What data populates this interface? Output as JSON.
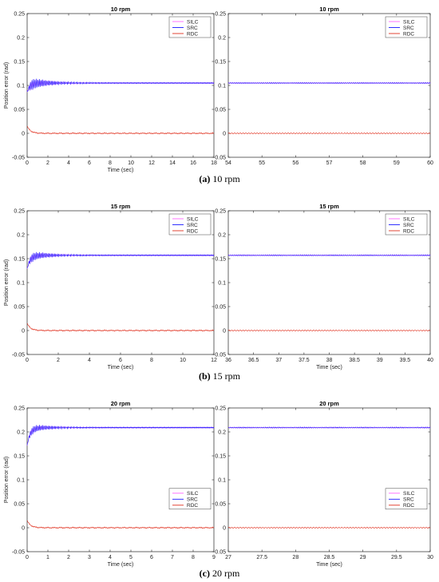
{
  "captions": [
    {
      "letter": "(a)",
      "text": "10 rpm"
    },
    {
      "letter": "(b)",
      "text": "15 rpm"
    },
    {
      "letter": "(c)",
      "text": "20 rpm"
    }
  ],
  "series_style": [
    {
      "name": "SILC",
      "color": "#ff66ff"
    },
    {
      "name": "SRC",
      "color": "#1a1aff"
    },
    {
      "name": "RDC",
      "color": "#e0301e"
    }
  ],
  "chart_data": [
    {
      "type": "line",
      "title": "10 rpm",
      "xlabel": "Time (sec)",
      "ylabel": "Position error (rad)",
      "xlim": [
        0,
        18
      ],
      "ylim": [
        -0.05,
        0.25
      ],
      "xticks": [
        "0",
        "2",
        "4",
        "6",
        "8",
        "10",
        "12",
        "14",
        "16",
        "18"
      ],
      "yticks": [
        "-0.05",
        "0",
        "0.05",
        "0.1",
        "0.15",
        "0.2",
        "0.25"
      ],
      "legend": [
        "SILC",
        "SRC",
        "RDC"
      ],
      "legend_position": "top-right",
      "steady_state": {
        "SILC": 0.105,
        "SRC": 0.105,
        "RDC": 0.0
      },
      "transient_peak": 0.115
    },
    {
      "type": "line",
      "title": "10 rpm",
      "xlabel": "",
      "ylabel": "",
      "xlim": [
        54,
        60
      ],
      "ylim": [
        -0.05,
        0.25
      ],
      "xticks": [
        "54",
        "55",
        "56",
        "57",
        "58",
        "59",
        "60"
      ],
      "yticks": [
        "-0.05",
        "0",
        "0.05",
        "0.1",
        "0.15",
        "0.2",
        "0.25"
      ],
      "legend": [
        "SILC",
        "SRC",
        "RDC"
      ],
      "legend_position": "top-right",
      "steady_state": {
        "SILC": 0.105,
        "SRC": 0.105,
        "RDC": 0.0
      }
    },
    {
      "type": "line",
      "title": "15 rpm",
      "xlabel": "Time (sec)",
      "ylabel": "Position error (rad)",
      "xlim": [
        0,
        12
      ],
      "ylim": [
        -0.05,
        0.25
      ],
      "xticks": [
        "0",
        "2",
        "4",
        "6",
        "8",
        "10",
        "12"
      ],
      "yticks": [
        "-0.05",
        "0",
        "0.05",
        "0.1",
        "0.15",
        "0.2",
        "0.25"
      ],
      "legend": [
        "SILC",
        "SRC",
        "RDC"
      ],
      "legend_position": "top-right",
      "steady_state": {
        "SILC": 0.157,
        "SRC": 0.157,
        "RDC": 0.0
      },
      "transient_peak": 0.165
    },
    {
      "type": "line",
      "title": "15 rpm",
      "xlabel": "Time (sec)",
      "ylabel": "",
      "xlim": [
        36,
        40
      ],
      "ylim": [
        -0.05,
        0.25
      ],
      "xticks": [
        "36",
        "36.5",
        "37",
        "37.5",
        "38",
        "38.5",
        "39",
        "39.5",
        "40"
      ],
      "yticks": [
        "-0.05",
        "0",
        "0.05",
        "0.1",
        "0.15",
        "0.2",
        "0.25"
      ],
      "legend": [
        "SILC",
        "SRC",
        "RDC"
      ],
      "legend_position": "top-right",
      "steady_state": {
        "SILC": 0.157,
        "SRC": 0.157,
        "RDC": 0.0
      }
    },
    {
      "type": "line",
      "title": "20 rpm",
      "xlabel": "Time (sec)",
      "ylabel": "Position error (rad)",
      "xlim": [
        0,
        9
      ],
      "ylim": [
        -0.05,
        0.25
      ],
      "xticks": [
        "0",
        "1",
        "2",
        "3",
        "4",
        "5",
        "6",
        "7",
        "8",
        "9"
      ],
      "yticks": [
        "-0.05",
        "0",
        "0.05",
        "0.1",
        "0.15",
        "0.2",
        "0.25"
      ],
      "legend": [
        "SILC",
        "SRC",
        "RDC"
      ],
      "legend_position": "center-right",
      "steady_state": {
        "SILC": 0.209,
        "SRC": 0.209,
        "RDC": 0.0
      },
      "transient_peak": 0.216
    },
    {
      "type": "line",
      "title": "20 rpm",
      "xlabel": "Time (sec)",
      "ylabel": "",
      "xlim": [
        27,
        30
      ],
      "ylim": [
        -0.05,
        0.25
      ],
      "xticks": [
        "27",
        "27.5",
        "28",
        "28.5",
        "29",
        "29.5",
        "30"
      ],
      "yticks": [
        "-0.05",
        "0",
        "0.05",
        "0.1",
        "0.15",
        "0.2",
        "0.25"
      ],
      "legend": [
        "SILC",
        "SRC",
        "RDC"
      ],
      "legend_position": "center-right",
      "steady_state": {
        "SILC": 0.209,
        "SRC": 0.209,
        "RDC": 0.0
      }
    }
  ]
}
